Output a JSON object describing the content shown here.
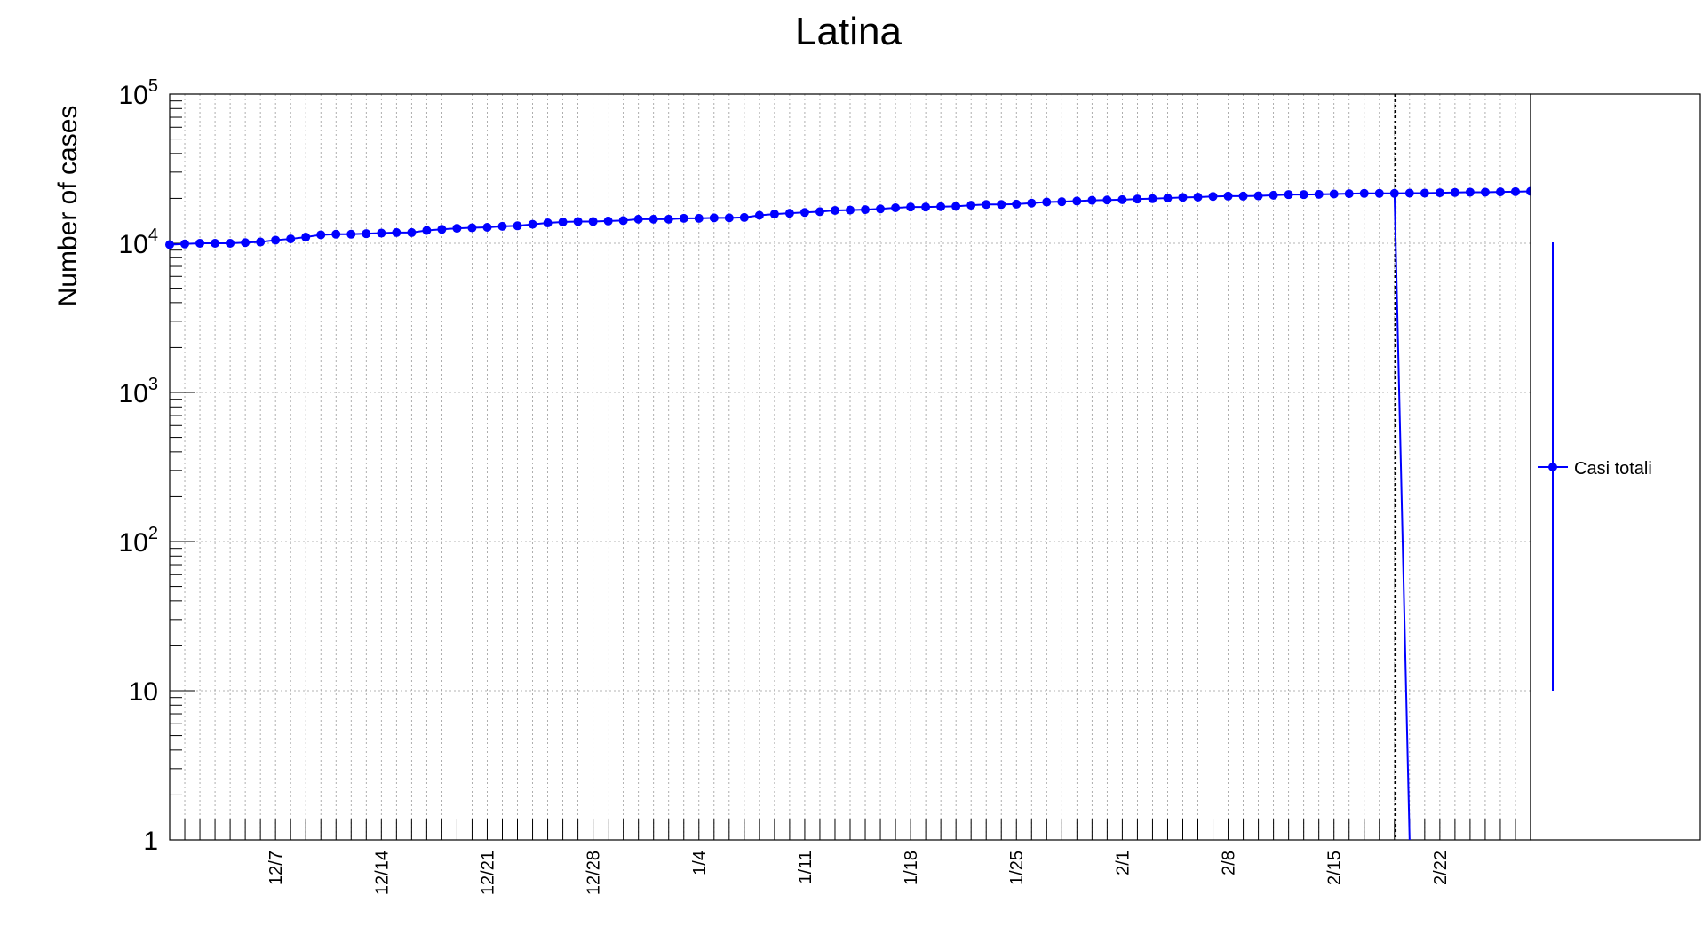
{
  "chart_data": {
    "type": "line",
    "title": "Latina",
    "xlabel": "",
    "ylabel": "Number of cases",
    "y_scale": "log",
    "ylim": [
      1,
      100000
    ],
    "xlim": [
      "2020-11-30",
      "2021-02-28"
    ],
    "grid": true,
    "legend_position": "right",
    "y_ticks": [
      {
        "value": 1,
        "base": "1",
        "exp": ""
      },
      {
        "value": 10,
        "base": "10",
        "exp": ""
      },
      {
        "value": 100,
        "base": "10",
        "exp": "2"
      },
      {
        "value": 1000,
        "base": "10",
        "exp": "3"
      },
      {
        "value": 10000,
        "base": "10",
        "exp": "4"
      },
      {
        "value": 100000,
        "base": "10",
        "exp": "5"
      }
    ],
    "x_ticks": [
      {
        "date": "2020-12-07",
        "label": "12/7"
      },
      {
        "date": "2020-12-14",
        "label": "12/14"
      },
      {
        "date": "2020-12-21",
        "label": "12/21"
      },
      {
        "date": "2020-12-28",
        "label": "12/28"
      },
      {
        "date": "2021-01-04",
        "label": "1/4"
      },
      {
        "date": "2021-01-11",
        "label": "1/11"
      },
      {
        "date": "2021-01-18",
        "label": "1/18"
      },
      {
        "date": "2021-01-25",
        "label": "1/25"
      },
      {
        "date": "2021-02-01",
        "label": "2/1"
      },
      {
        "date": "2021-02-08",
        "label": "2/8"
      },
      {
        "date": "2021-02-15",
        "label": "2/15"
      },
      {
        "date": "2021-02-22",
        "label": "2/22"
      }
    ],
    "marker_line_date": "2021-02-19",
    "series": [
      {
        "name": "Casi totali",
        "color": "#0000ff",
        "start_date": "2020-11-30",
        "values": [
          9800,
          9900,
          10000,
          10000,
          10000,
          10100,
          10200,
          10500,
          10700,
          11000,
          11400,
          11500,
          11500,
          11600,
          11700,
          11800,
          11800,
          12200,
          12400,
          12600,
          12700,
          12800,
          13000,
          13100,
          13400,
          13700,
          13900,
          14000,
          14000,
          14100,
          14200,
          14500,
          14500,
          14500,
          14700,
          14700,
          14800,
          14800,
          14900,
          15400,
          15700,
          15900,
          16100,
          16300,
          16600,
          16700,
          16800,
          17000,
          17300,
          17500,
          17500,
          17600,
          17700,
          18000,
          18200,
          18200,
          18300,
          18600,
          18900,
          19000,
          19200,
          19400,
          19500,
          19600,
          19800,
          19900,
          20100,
          20300,
          20400,
          20600,
          20700,
          20700,
          20800,
          21000,
          21200,
          21200,
          21300,
          21400,
          21500,
          21600,
          21600,
          21600,
          21700,
          21700,
          21800,
          21900,
          22000,
          22000,
          22100,
          22200,
          22300,
          22400
        ]
      }
    ],
    "drop": {
      "from_date": "2021-02-19",
      "to_date": "2021-02-20",
      "from_value": 22400,
      "to_value": 1
    }
  }
}
